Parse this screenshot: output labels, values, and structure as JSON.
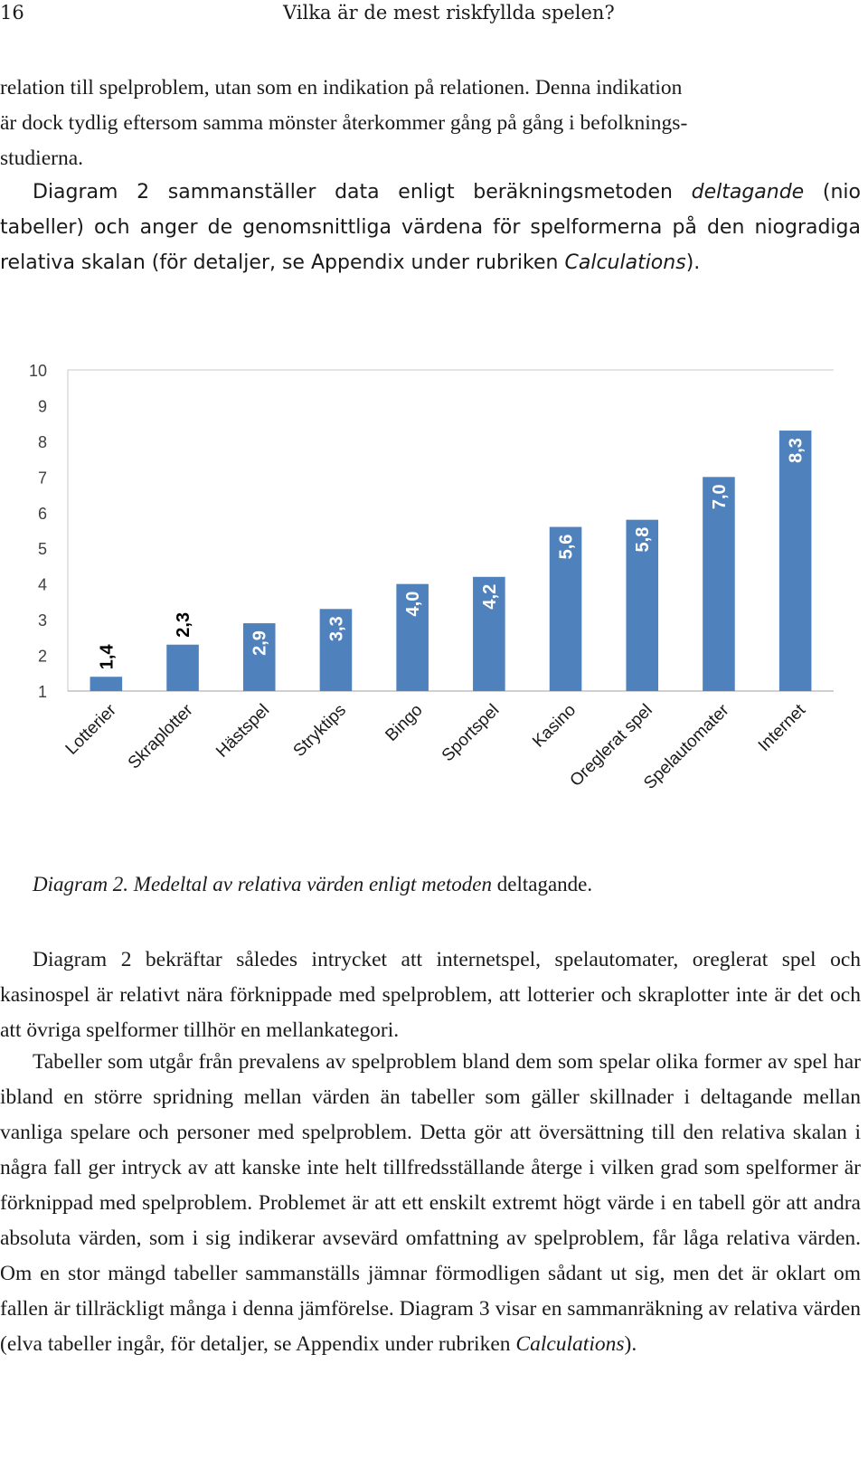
{
  "header": {
    "page_number": "16",
    "running_title": "Vilka är de mest riskfyllda spelen?"
  },
  "para1": {
    "lines": [
      "relation till spelproblem, utan som en indikation på relationen. Denna indikation",
      "är dock tydlig eftersom samma mönster återkommer gång på gång i befolknings-",
      "studierna."
    ]
  },
  "para2": {
    "text_a": "Diagram 2 sammanställer data enligt beräkningsmetoden ",
    "em_a": "deltagande",
    "text_b": " (nio tabeller) och anger de genomsnittliga värdena för spelformerna på den niogradiga relativa skalan (för detaljer, se Appendix under rubriken ",
    "em_b": "Calculations",
    "text_c": ")."
  },
  "chart_data": {
    "type": "bar",
    "categories": [
      "Lotterier",
      "Skraplotter",
      "Hästspel",
      "Stryktips",
      "Bingo",
      "Sportspel",
      "Kasino",
      "Oreglerat spel",
      "Spelautomater",
      "Internet"
    ],
    "values": [
      1.4,
      2.3,
      2.9,
      3.3,
      4.0,
      4.2,
      5.6,
      5.8,
      7.0,
      8.3
    ],
    "value_labels": [
      "1,4",
      "2,3",
      "2,9",
      "3,3",
      "4,0",
      "4,2",
      "5,6",
      "5,8",
      "7,0",
      "8,3"
    ],
    "y_ticks": [
      "1",
      "2",
      "3",
      "4",
      "5",
      "6",
      "7",
      "8",
      "9",
      "10"
    ],
    "ylim": [
      1,
      10
    ],
    "bar_color": "#4f81bd",
    "grid": false,
    "title": "",
    "xlabel": "",
    "ylabel": ""
  },
  "caption": {
    "italic": "Diagram 2. Medeltal av relativa värden enligt metoden",
    "plain": " deltagande."
  },
  "para3": {
    "text": "Diagram 2 bekräftar således intrycket att internetspel, spelautomater, oreglerat spel och kasinospel är relativt nära förknippade med spelproblem, att lotterier och skraplotter inte är det och att övriga spelformer tillhör en mellankategori."
  },
  "para4": {
    "text_a": "Tabeller som utgår från prevalens av spelproblem bland dem som spelar olika former av spel har ibland en större spridning mellan värden än tabeller som gäller skillnader i deltagande mellan vanliga spelare och personer med spelproblem. Detta gör att översättning till den relativa skalan i några fall ger intryck av att kanske inte helt tillfredsställande återge i vilken grad som spelformer är förknippad med spelproblem. Problemet är att ett enskilt extremt högt värde i en tabell gör att andra absoluta värden, som i sig indikerar avsevärd omfattning av spelproblem, får låga relativa värden. Om en stor mängd tabeller sammanställs jämnar förmodligen sådant ut sig, men det är oklart om fallen är tillräckligt många i denna jämförelse. Diagram 3 visar en sammanräkning av relativa värden (elva tabeller ingår, för detaljer, se Appendix under rubriken ",
    "em": "Calculations",
    "text_b": ")."
  }
}
